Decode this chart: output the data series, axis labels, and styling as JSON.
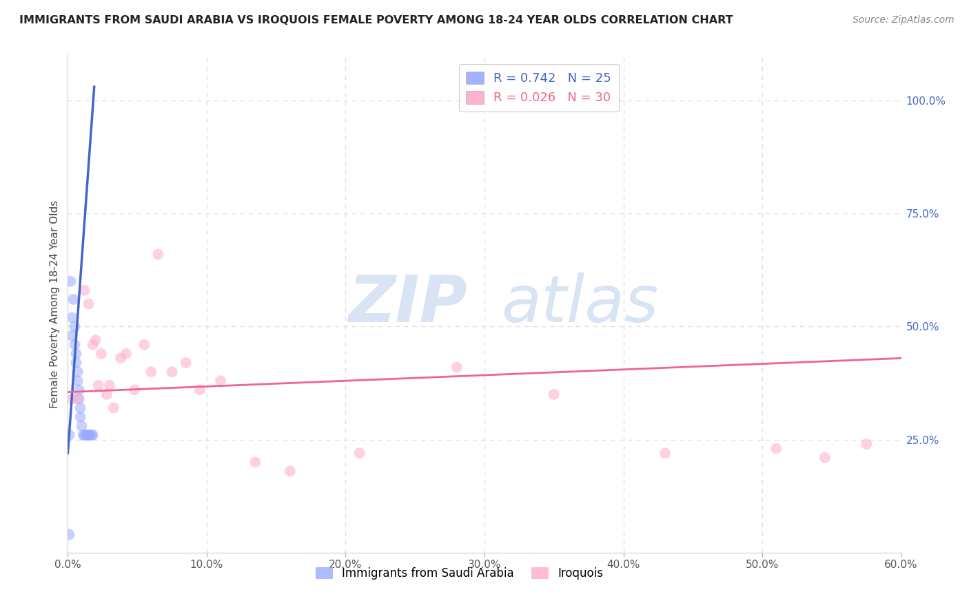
{
  "title": "IMMIGRANTS FROM SAUDI ARABIA VS IROQUOIS FEMALE POVERTY AMONG 18-24 YEAR OLDS CORRELATION CHART",
  "source": "Source: ZipAtlas.com",
  "ylabel": "Female Poverty Among 18-24 Year Olds",
  "ylabel_right_ticks": [
    "100.0%",
    "75.0%",
    "50.0%",
    "25.0%"
  ],
  "ylabel_right_vals": [
    1.0,
    0.75,
    0.5,
    0.25
  ],
  "xmin": 0.0,
  "xmax": 0.6,
  "ymin": 0.0,
  "ymax": 1.1,
  "legend_blue_label": "Immigrants from Saudi Arabia",
  "legend_pink_label": "Iroquois",
  "blue_scatter_x": [
    0.001,
    0.002,
    0.003,
    0.003,
    0.004,
    0.005,
    0.005,
    0.006,
    0.006,
    0.007,
    0.007,
    0.008,
    0.008,
    0.009,
    0.009,
    0.01,
    0.011,
    0.012,
    0.013,
    0.014,
    0.015,
    0.016,
    0.017,
    0.018,
    0.001
  ],
  "blue_scatter_y": [
    0.26,
    0.6,
    0.48,
    0.52,
    0.56,
    0.46,
    0.5,
    0.42,
    0.44,
    0.4,
    0.38,
    0.36,
    0.34,
    0.32,
    0.3,
    0.28,
    0.26,
    0.26,
    0.26,
    0.26,
    0.26,
    0.26,
    0.26,
    0.26,
    0.04
  ],
  "pink_scatter_x": [
    0.003,
    0.007,
    0.012,
    0.015,
    0.018,
    0.02,
    0.022,
    0.024,
    0.028,
    0.03,
    0.033,
    0.038,
    0.042,
    0.048,
    0.055,
    0.06,
    0.065,
    0.075,
    0.085,
    0.095,
    0.11,
    0.135,
    0.16,
    0.21,
    0.28,
    0.35,
    0.43,
    0.51,
    0.545,
    0.575
  ],
  "pink_scatter_y": [
    0.34,
    0.34,
    0.58,
    0.55,
    0.46,
    0.47,
    0.37,
    0.44,
    0.35,
    0.37,
    0.32,
    0.43,
    0.44,
    0.36,
    0.46,
    0.4,
    0.66,
    0.4,
    0.42,
    0.36,
    0.38,
    0.2,
    0.18,
    0.22,
    0.41,
    0.35,
    0.22,
    0.23,
    0.21,
    0.24
  ],
  "blue_line_x": [
    0.0,
    0.019
  ],
  "blue_line_y": [
    0.22,
    1.03
  ],
  "pink_line_x": [
    0.0,
    0.6
  ],
  "pink_line_y": [
    0.355,
    0.43
  ],
  "watermark_zip": "ZIP",
  "watermark_atlas": "atlas",
  "background_color": "#ffffff",
  "grid_color": "#dddddd",
  "blue_color": "#99aaff",
  "pink_color": "#ffaac8",
  "blue_line_color": "#4466cc",
  "pink_line_color": "#ee6688"
}
